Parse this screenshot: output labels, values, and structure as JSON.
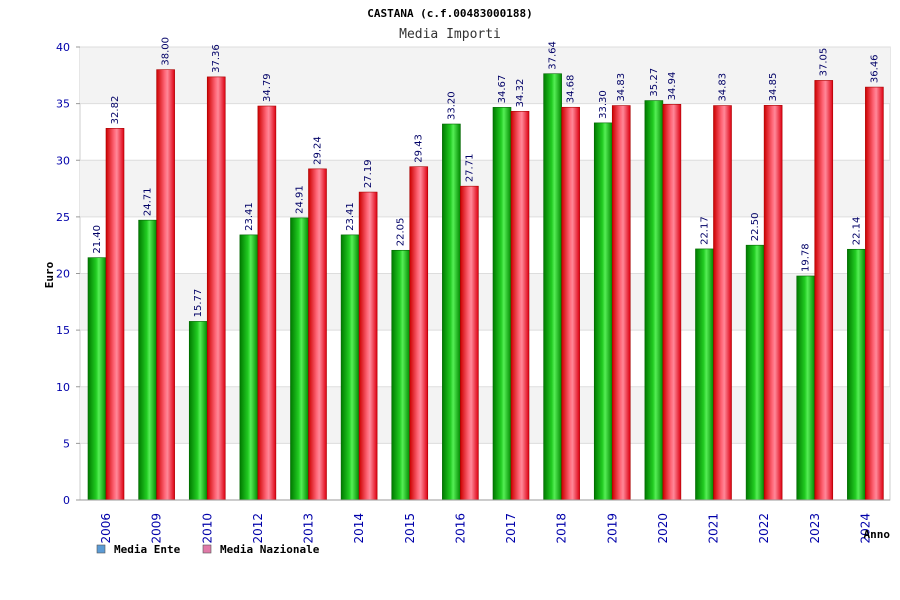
{
  "chart_data": {
    "type": "bar",
    "title": "CASTANA (c.f.00483000188)",
    "subtitle": "Media Importi",
    "xlabel": "Anno",
    "ylabel": "Euro",
    "ylim": [
      0,
      40
    ],
    "yticks": [
      0,
      5,
      10,
      15,
      20,
      25,
      30,
      35,
      40
    ],
    "grid": true,
    "legend_position": "bottom-left",
    "categories": [
      "2006",
      "2009",
      "2010",
      "2012",
      "2013",
      "2014",
      "2015",
      "2016",
      "2017",
      "2018",
      "2019",
      "2020",
      "2021",
      "2022",
      "2023",
      "2024"
    ],
    "series": [
      {
        "name": "Media Ente",
        "legend_color": "#5b9bd5",
        "bar_color": "#00aa00",
        "values": [
          21.4,
          24.71,
          15.77,
          23.41,
          24.91,
          23.41,
          22.05,
          33.2,
          34.67,
          37.64,
          33.3,
          35.27,
          22.17,
          22.5,
          19.78,
          22.14
        ],
        "labels": [
          "21.40",
          "24.71",
          "15.77",
          "23.41",
          "24.91",
          "23.41",
          "22.05",
          "33.20",
          "34.67",
          "37.64",
          "33.30",
          "35.27",
          "22.17",
          "22.50",
          "19.78",
          "22.14"
        ]
      },
      {
        "name": "Media Nazionale",
        "legend_color": "#e07aa8",
        "bar_color": "#ee1111",
        "values": [
          32.82,
          38.0,
          37.36,
          34.79,
          29.24,
          27.19,
          29.43,
          27.71,
          34.32,
          34.68,
          34.83,
          34.94,
          34.83,
          34.85,
          37.05,
          36.46
        ],
        "labels": [
          "32.82",
          "38.00",
          "37.36",
          "34.79",
          "29.24",
          "27.19",
          "29.43",
          "27.71",
          "34.32",
          "34.68",
          "34.83",
          "34.94",
          "34.83",
          "34.85",
          "37.05",
          "36.46"
        ]
      }
    ]
  }
}
